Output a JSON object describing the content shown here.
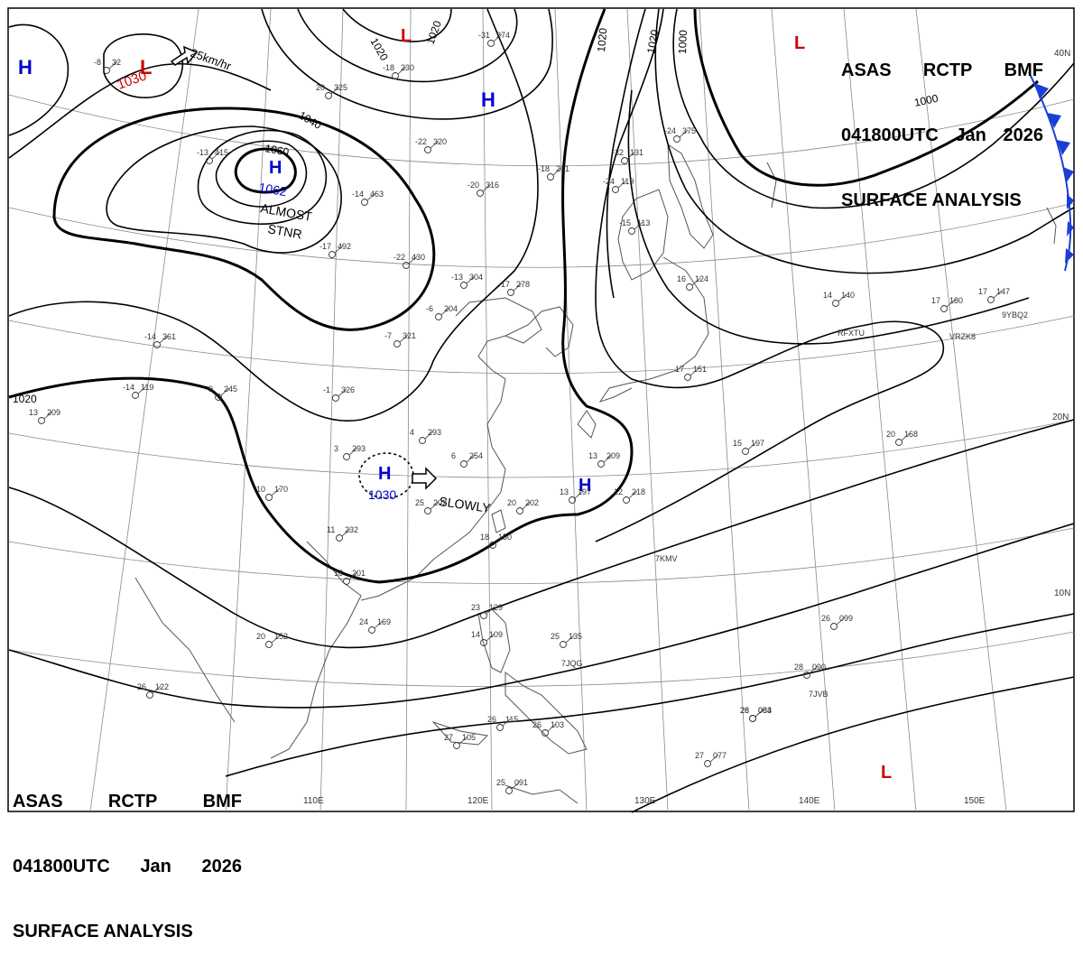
{
  "header": {
    "agency": "ASAS",
    "station": "RCTP",
    "office": "BMF",
    "time": "041800UTC",
    "month": "Jan",
    "year": "2026",
    "title": "SURFACE ANALYSIS"
  },
  "colors": {
    "high": "#0000cc",
    "low": "#cc0000",
    "front": "#1a3fd6",
    "isobar": "#000000",
    "coast": "#555555",
    "grid": "#8a8a8a"
  },
  "grid_labels": {
    "lon": [
      "110E",
      "120E",
      "130E",
      "140E",
      "150E"
    ],
    "lat": [
      "40N",
      "20N",
      "10N"
    ]
  },
  "isobar_labels": [
    "1020",
    "1020",
    "1020",
    "1020",
    "1000",
    "1000",
    "1040",
    "1060",
    "1020"
  ],
  "pressure_centers": [
    {
      "type": "H",
      "value": ""
    },
    {
      "type": "L",
      "value": "1030"
    },
    {
      "type": "L",
      "value": ""
    },
    {
      "type": "H",
      "value": ""
    },
    {
      "type": "H",
      "value": "1062"
    },
    {
      "type": "H",
      "value": "1030"
    },
    {
      "type": "H",
      "value": ""
    },
    {
      "type": "L",
      "value": ""
    },
    {
      "type": "L",
      "value": ""
    }
  ],
  "annotations": {
    "motion_speed": "25km/hr",
    "almost": "ALMOST",
    "stnr": "STNR",
    "slowly": "SLOWLY"
  },
  "stations": [
    [
      "-8",
      "32"
    ],
    [
      "-31",
      "274"
    ],
    [
      "-18",
      "230"
    ],
    [
      "20",
      "325"
    ],
    [
      "-13",
      "415"
    ],
    [
      "-22",
      "320"
    ],
    [
      "-18",
      "201"
    ],
    [
      "-20",
      "316"
    ],
    [
      "-32",
      "131"
    ],
    [
      "-24",
      "375"
    ],
    [
      "-24",
      "119"
    ],
    [
      "-14",
      "463"
    ],
    [
      "-17",
      "492"
    ],
    [
      "-22",
      "430"
    ],
    [
      "-13",
      "304"
    ],
    [
      "-17",
      "278"
    ],
    [
      "-6",
      "204"
    ],
    [
      "-7",
      "321"
    ],
    [
      "-14",
      "361"
    ],
    [
      "-1",
      "326"
    ],
    [
      "14",
      "140"
    ],
    [
      "17",
      "180"
    ],
    [
      "17",
      "147"
    ],
    [
      "-15",
      "113"
    ],
    [
      "16",
      "124"
    ],
    [
      "-14",
      "119"
    ],
    [
      "13",
      "209"
    ],
    [
      "-9",
      "245"
    ],
    [
      "4",
      "293"
    ],
    [
      "3",
      "293"
    ],
    [
      "6",
      "254"
    ],
    [
      "13",
      "209"
    ],
    [
      "13",
      "197"
    ],
    [
      "12",
      "218"
    ],
    [
      "25",
      "202"
    ],
    [
      "20",
      "202"
    ],
    [
      "15",
      "197"
    ],
    [
      "20",
      "168"
    ],
    [
      "17",
      "151"
    ],
    [
      "10",
      "170"
    ],
    [
      "11",
      "232"
    ],
    [
      "18",
      "201"
    ],
    [
      "24",
      "169"
    ],
    [
      "20",
      "152"
    ],
    [
      "23",
      "129"
    ],
    [
      "14",
      "109"
    ],
    [
      "25",
      "135"
    ],
    [
      "26",
      "099"
    ],
    [
      "28",
      "090"
    ],
    [
      "28",
      "083"
    ],
    [
      "26",
      "115"
    ],
    [
      "26",
      "103"
    ],
    [
      "27",
      "105"
    ],
    [
      "26",
      "084"
    ],
    [
      "27",
      "077"
    ],
    [
      "25",
      "091"
    ],
    [
      "26",
      "122"
    ],
    [
      "18",
      "150"
    ]
  ],
  "ship_ids": [
    "RFXTU",
    "VRZK8",
    "9YBQ2",
    "7KMV",
    "7JQG",
    "7JVB"
  ]
}
